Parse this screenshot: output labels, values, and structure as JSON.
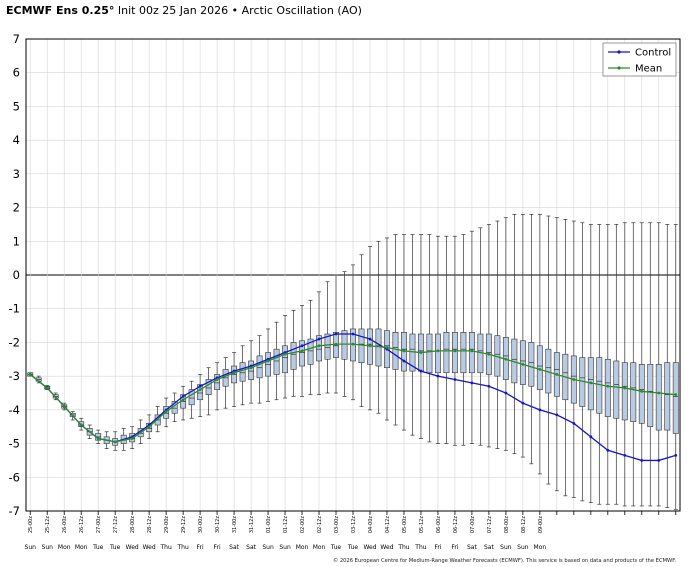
{
  "header": {
    "model": "ECMWF Ens 0.25°",
    "subtitle": "Init 00z 25 Jan 2026 • Arctic Oscillation (AO)"
  },
  "footer": {
    "copyright": "© 2026 European Centre for Medium-Range Weather Forecasts (ECMWF). This service is based on data and products of the ECMWF."
  },
  "chart_data": {
    "type": "box",
    "title": "Arctic Oscillation (AO)",
    "ylim": [
      -7,
      7
    ],
    "yticks": [
      7,
      6,
      5,
      4,
      3,
      2,
      1,
      0,
      -1,
      -2,
      -3,
      -4,
      -5,
      -6,
      -7
    ],
    "grid": true,
    "legend_position": "top-right",
    "zero_line": true,
    "x_date_labels": [
      "25-00z",
      "25-12z",
      "26-00z",
      "26-12z",
      "27-00z",
      "27-12z",
      "28-00z",
      "28-12z",
      "29-00z",
      "29-12z",
      "30-00z",
      "30-12z",
      "31-00z",
      "31-12z",
      "01-00z",
      "01-12z",
      "02-00z",
      "02-12z",
      "03-00z",
      "03-12z",
      "04-00z",
      "04-12z",
      "05-00z",
      "05-12z",
      "06-00z",
      "06-12z",
      "07-00z",
      "07-12z",
      "08-00z",
      "08-12z",
      "09-00z"
    ],
    "x_day_labels": [
      "Sun",
      "Sun",
      "Mon",
      "Mon",
      "Tue",
      "Tue",
      "Wed",
      "Wed",
      "Thu",
      "Thu",
      "Fri",
      "Fri",
      "Sat",
      "Sat",
      "Sun",
      "Sun",
      "Mon",
      "Mon",
      "Tue",
      "Tue",
      "Wed",
      "Wed",
      "Thu",
      "Thu",
      "Fri",
      "Fri",
      "Sat",
      "Sat",
      "Sun",
      "Sun",
      "Mon"
    ],
    "boxes": [
      {
        "x": 0,
        "min": -3.0,
        "q1": -3.0,
        "med": -2.95,
        "q3": -2.9,
        "max": -2.9
      },
      {
        "x": 1,
        "min": -3.2,
        "q1": -3.15,
        "med": -3.1,
        "q3": -3.05,
        "max": -3.0
      },
      {
        "x": 2,
        "min": -3.4,
        "q1": -3.38,
        "med": -3.35,
        "q3": -3.3,
        "max": -3.28
      },
      {
        "x": 3,
        "min": -3.7,
        "q1": -3.65,
        "med": -3.6,
        "q3": -3.55,
        "max": -3.5
      },
      {
        "x": 4,
        "min": -4.0,
        "q1": -3.95,
        "med": -3.9,
        "q3": -3.85,
        "max": -3.8
      },
      {
        "x": 5,
        "min": -4.3,
        "q1": -4.2,
        "med": -4.15,
        "q3": -4.1,
        "max": -4.05
      },
      {
        "x": 6,
        "min": -4.6,
        "q1": -4.5,
        "med": -4.45,
        "q3": -4.35,
        "max": -4.25
      },
      {
        "x": 7,
        "min": -4.85,
        "q1": -4.75,
        "med": -4.65,
        "q3": -4.55,
        "max": -4.45
      },
      {
        "x": 8,
        "min": -5.0,
        "q1": -4.9,
        "med": -4.8,
        "q3": -4.7,
        "max": -4.6
      },
      {
        "x": 9,
        "min": -5.15,
        "q1": -5.0,
        "med": -4.9,
        "q3": -4.8,
        "max": -4.65
      },
      {
        "x": 10,
        "min": -5.2,
        "q1": -5.05,
        "med": -4.95,
        "q3": -4.85,
        "max": -4.65
      },
      {
        "x": 11,
        "min": -5.2,
        "q1": -5.0,
        "med": -4.9,
        "q3": -4.75,
        "max": -4.55
      },
      {
        "x": 12,
        "min": -5.15,
        "q1": -4.95,
        "med": -4.85,
        "q3": -4.7,
        "max": -4.5
      },
      {
        "x": 13,
        "min": -5.0,
        "q1": -4.8,
        "med": -4.7,
        "q3": -4.55,
        "max": -4.3
      },
      {
        "x": 14,
        "min": -4.85,
        "q1": -4.65,
        "med": -4.55,
        "q3": -4.4,
        "max": -4.15
      },
      {
        "x": 15,
        "min": -4.65,
        "q1": -4.45,
        "med": -4.3,
        "q3": -4.15,
        "max": -3.9
      },
      {
        "x": 16,
        "min": -4.5,
        "q1": -4.25,
        "med": -4.1,
        "q3": -3.9,
        "max": -3.65
      },
      {
        "x": 17,
        "min": -4.35,
        "q1": -4.1,
        "med": -3.95,
        "q3": -3.75,
        "max": -3.5
      },
      {
        "x": 18,
        "min": -4.3,
        "q1": -3.95,
        "med": -3.75,
        "q3": -3.55,
        "max": -3.3
      },
      {
        "x": 19,
        "min": -4.25,
        "q1": -3.85,
        "med": -3.65,
        "q3": -3.4,
        "max": -3.15
      },
      {
        "x": 20,
        "min": -4.2,
        "q1": -3.7,
        "med": -3.5,
        "q3": -3.25,
        "max": -2.95
      },
      {
        "x": 21,
        "min": -4.15,
        "q1": -3.55,
        "med": -3.35,
        "q3": -3.1,
        "max": -2.75
      },
      {
        "x": 22,
        "min": -4.0,
        "q1": -3.4,
        "med": -3.2,
        "q3": -2.95,
        "max": -2.6
      },
      {
        "x": 23,
        "min": -3.95,
        "q1": -3.3,
        "med": -3.05,
        "q3": -2.8,
        "max": -2.45
      },
      {
        "x": 24,
        "min": -3.9,
        "q1": -3.2,
        "med": -2.95,
        "q3": -2.7,
        "max": -2.3
      },
      {
        "x": 25,
        "min": -3.85,
        "q1": -3.15,
        "med": -2.9,
        "q3": -2.6,
        "max": -2.1
      },
      {
        "x": 26,
        "min": -3.8,
        "q1": -3.1,
        "med": -2.85,
        "q3": -2.55,
        "max": -1.95
      },
      {
        "x": 27,
        "min": -3.8,
        "q1": -3.05,
        "med": -2.75,
        "q3": -2.4,
        "max": -1.8
      },
      {
        "x": 28,
        "min": -3.75,
        "q1": -3.0,
        "med": -2.65,
        "q3": -2.3,
        "max": -1.6
      },
      {
        "x": 29,
        "min": -3.7,
        "q1": -2.95,
        "med": -2.55,
        "q3": -2.2,
        "max": -1.4
      },
      {
        "x": 30,
        "min": -3.65,
        "q1": -2.9,
        "med": -2.45,
        "q3": -2.1,
        "max": -1.2
      },
      {
        "x": 31,
        "min": -3.6,
        "q1": -2.8,
        "med": -2.35,
        "q3": -2.0,
        "max": -1.05
      },
      {
        "x": 32,
        "min": -3.6,
        "q1": -2.7,
        "med": -2.3,
        "q3": -1.95,
        "max": -0.9
      },
      {
        "x": 33,
        "min": -3.55,
        "q1": -2.65,
        "med": -2.25,
        "q3": -1.9,
        "max": -0.75
      },
      {
        "x": 34,
        "min": -3.55,
        "q1": -2.55,
        "med": -2.2,
        "q3": -1.8,
        "max": -0.5
      },
      {
        "x": 35,
        "min": -3.5,
        "q1": -2.5,
        "med": -2.15,
        "q3": -1.75,
        "max": -0.2
      },
      {
        "x": 36,
        "min": -3.5,
        "q1": -2.45,
        "med": -2.1,
        "q3": -1.7,
        "max": 0.0
      },
      {
        "x": 37,
        "min": -3.6,
        "q1": -2.5,
        "med": -2.05,
        "q3": -1.65,
        "max": 0.1
      },
      {
        "x": 38,
        "min": -3.7,
        "q1": -2.55,
        "med": -2.05,
        "q3": -1.6,
        "max": 0.3
      },
      {
        "x": 39,
        "min": -3.9,
        "q1": -2.6,
        "med": -2.05,
        "q3": -1.6,
        "max": 0.6
      },
      {
        "x": 40,
        "min": -4.0,
        "q1": -2.65,
        "med": -2.05,
        "q3": -1.6,
        "max": 0.85
      },
      {
        "x": 41,
        "min": -4.1,
        "q1": -2.7,
        "med": -2.1,
        "q3": -1.6,
        "max": 1.0
      },
      {
        "x": 42,
        "min": -4.3,
        "q1": -2.75,
        "med": -2.1,
        "q3": -1.65,
        "max": 1.1
      },
      {
        "x": 43,
        "min": -4.45,
        "q1": -2.8,
        "med": -2.15,
        "q3": -1.7,
        "max": 1.2
      },
      {
        "x": 44,
        "min": -4.6,
        "q1": -2.85,
        "med": -2.2,
        "q3": -1.7,
        "max": 1.2
      },
      {
        "x": 45,
        "min": -4.75,
        "q1": -2.85,
        "med": -2.2,
        "q3": -1.75,
        "max": 1.2
      },
      {
        "x": 46,
        "min": -4.85,
        "q1": -2.85,
        "med": -2.25,
        "q3": -1.75,
        "max": 1.2
      },
      {
        "x": 47,
        "min": -4.95,
        "q1": -2.9,
        "med": -2.25,
        "q3": -1.75,
        "max": 1.2
      },
      {
        "x": 48,
        "min": -5.0,
        "q1": -2.9,
        "med": -2.25,
        "q3": -1.75,
        "max": 1.15
      },
      {
        "x": 49,
        "min": -5.0,
        "q1": -2.9,
        "med": -2.2,
        "q3": -1.7,
        "max": 1.15
      },
      {
        "x": 50,
        "min": -5.05,
        "q1": -2.9,
        "med": -2.2,
        "q3": -1.7,
        "max": 1.15
      },
      {
        "x": 51,
        "min": -5.05,
        "q1": -2.9,
        "med": -2.2,
        "q3": -1.7,
        "max": 1.2
      },
      {
        "x": 52,
        "min": -5.0,
        "q1": -2.9,
        "med": -2.2,
        "q3": -1.7,
        "max": 1.3
      },
      {
        "x": 53,
        "min": -5.05,
        "q1": -2.9,
        "med": -2.25,
        "q3": -1.75,
        "max": 1.4
      },
      {
        "x": 54,
        "min": -5.1,
        "q1": -2.95,
        "med": -2.3,
        "q3": -1.75,
        "max": 1.5
      },
      {
        "x": 55,
        "min": -5.15,
        "q1": -3.0,
        "med": -2.35,
        "q3": -1.8,
        "max": 1.6
      },
      {
        "x": 56,
        "min": -5.2,
        "q1": -3.1,
        "med": -2.4,
        "q3": -1.85,
        "max": 1.7
      },
      {
        "x": 57,
        "min": -5.3,
        "q1": -3.2,
        "med": -2.5,
        "q3": -1.9,
        "max": 1.8
      },
      {
        "x": 58,
        "min": -5.4,
        "q1": -3.25,
        "med": -2.55,
        "q3": -1.95,
        "max": 1.8
      },
      {
        "x": 59,
        "min": -5.6,
        "q1": -3.3,
        "med": -2.6,
        "q3": -2.0,
        "max": 1.8
      },
      {
        "x": 60,
        "min": -5.9,
        "q1": -3.4,
        "med": -2.7,
        "q3": -2.1,
        "max": 1.8
      },
      {
        "x": 61,
        "min": -6.2,
        "q1": -3.5,
        "med": -2.75,
        "q3": -2.2,
        "max": 1.75
      },
      {
        "x": 62,
        "min": -6.4,
        "q1": -3.6,
        "med": -2.8,
        "q3": -2.3,
        "max": 1.7
      },
      {
        "x": 63,
        "min": -6.55,
        "q1": -3.7,
        "med": -2.9,
        "q3": -2.35,
        "max": 1.65
      },
      {
        "x": 64,
        "min": -6.6,
        "q1": -3.8,
        "med": -3.0,
        "q3": -2.4,
        "max": 1.6
      },
      {
        "x": 65,
        "min": -6.7,
        "q1": -3.9,
        "med": -3.05,
        "q3": -2.45,
        "max": 1.55
      },
      {
        "x": 66,
        "min": -6.75,
        "q1": -4.0,
        "med": -3.1,
        "q3": -2.45,
        "max": 1.5
      },
      {
        "x": 67,
        "min": -6.8,
        "q1": -4.1,
        "med": -3.15,
        "q3": -2.45,
        "max": 1.5
      },
      {
        "x": 68,
        "min": -6.8,
        "q1": -4.2,
        "med": -3.2,
        "q3": -2.5,
        "max": 1.5
      },
      {
        "x": 69,
        "min": -6.8,
        "q1": -4.25,
        "med": -3.25,
        "q3": -2.55,
        "max": 1.5
      },
      {
        "x": 70,
        "min": -6.85,
        "q1": -4.3,
        "med": -3.3,
        "q3": -2.6,
        "max": 1.55
      },
      {
        "x": 71,
        "min": -6.85,
        "q1": -4.35,
        "med": -3.35,
        "q3": -2.6,
        "max": 1.55
      },
      {
        "x": 72,
        "min": -6.85,
        "q1": -4.4,
        "med": -3.4,
        "q3": -2.65,
        "max": 1.55
      },
      {
        "x": 73,
        "min": -6.85,
        "q1": -4.5,
        "med": -3.45,
        "q3": -2.65,
        "max": 1.55
      },
      {
        "x": 74,
        "min": -6.85,
        "q1": -4.6,
        "med": -3.5,
        "q3": -2.65,
        "max": 1.55
      },
      {
        "x": 75,
        "min": -6.9,
        "q1": -4.6,
        "med": -3.55,
        "q3": -2.6,
        "max": 1.5
      },
      {
        "x": 76,
        "min": -6.95,
        "q1": -4.7,
        "med": -3.6,
        "q3": -2.6,
        "max": 1.5
      }
    ],
    "series": [
      {
        "name": "Control",
        "color": "#1515c8",
        "x": [
          0,
          2,
          4,
          6,
          8,
          10,
          12,
          14,
          16,
          18,
          20,
          22,
          24,
          26,
          28,
          30,
          32,
          34,
          36,
          38,
          40,
          42,
          44,
          46,
          48,
          50,
          52,
          54,
          56,
          58,
          60,
          62,
          64,
          66,
          68,
          70,
          72,
          74,
          76
        ],
        "values": [
          -2.95,
          -3.35,
          -3.9,
          -4.45,
          -4.85,
          -4.95,
          -4.8,
          -4.45,
          -4.0,
          -3.6,
          -3.3,
          -3.05,
          -2.85,
          -2.7,
          -2.5,
          -2.3,
          -2.1,
          -1.9,
          -1.75,
          -1.75,
          -1.9,
          -2.2,
          -2.55,
          -2.85,
          -3.0,
          -3.1,
          -3.2,
          -3.3,
          -3.5,
          -3.8,
          -4.0,
          -4.15,
          -4.4,
          -4.8,
          -5.2,
          -5.35,
          -5.5,
          -5.5,
          -5.35
        ]
      },
      {
        "name": "Mean",
        "color": "#2a8c2a",
        "x": [
          0,
          2,
          4,
          6,
          8,
          10,
          12,
          14,
          16,
          18,
          20,
          22,
          24,
          26,
          28,
          30,
          32,
          34,
          36,
          38,
          40,
          42,
          44,
          46,
          48,
          50,
          52,
          54,
          56,
          58,
          60,
          62,
          64,
          66,
          68,
          70,
          72,
          74,
          76
        ],
        "values": [
          -2.95,
          -3.35,
          -3.9,
          -4.45,
          -4.85,
          -4.95,
          -4.85,
          -4.5,
          -4.05,
          -3.7,
          -3.4,
          -3.1,
          -2.9,
          -2.75,
          -2.55,
          -2.35,
          -2.25,
          -2.1,
          -2.05,
          -2.05,
          -2.1,
          -2.15,
          -2.25,
          -2.3,
          -2.25,
          -2.25,
          -2.25,
          -2.35,
          -2.5,
          -2.65,
          -2.8,
          -2.95,
          -3.1,
          -3.2,
          -3.3,
          -3.35,
          -3.45,
          -3.5,
          -3.55
        ]
      }
    ]
  }
}
